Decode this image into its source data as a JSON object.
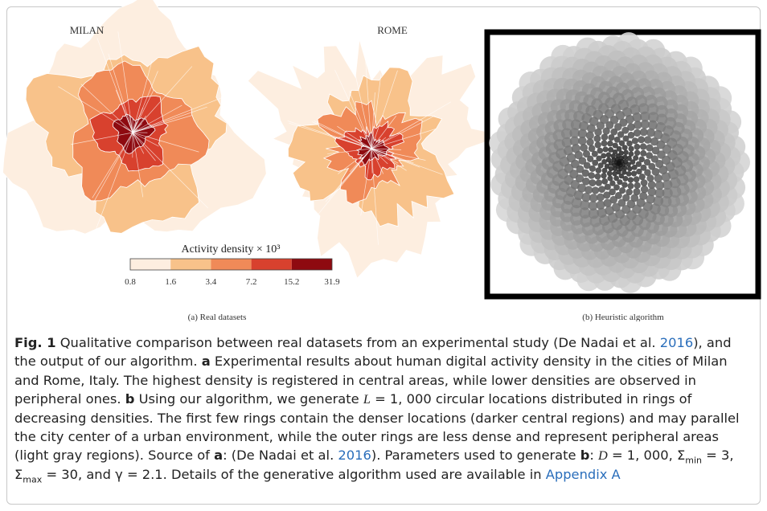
{
  "figure": {
    "panel_a": {
      "milan_label": "MILAN",
      "rome_label": "ROME",
      "colorbar_title": "Activity density × 10³",
      "colorbar_ticks": [
        "0.8",
        "1.6",
        "3.4",
        "7.2",
        "15.2",
        "31.9"
      ],
      "caption": "(a) Real datasets"
    },
    "panel_b": {
      "caption": "(b) Heuristic algorithm"
    }
  },
  "caption": {
    "segments": [
      "Fig. 1",
      "  Qualitative comparison between real datasets from an experimental study (De Nadai et al. ",
      "2016",
      "), and the output of our algorithm. ",
      "a",
      " Experimental results about human digital activity density in the cities of Milan and Rome, Italy. The highest density is registered in central areas, while lower densities are observed in peripheral ones. ",
      "b",
      " Using our algorithm, we generate ",
      "L",
      " = 1, 000 circular locations distributed in rings of decreasing densities. The first few rings contain the denser locations (darker central regions) and may parallel the city center of a urban environment, while the outer rings are less dense and represent peripheral areas (light gray regions). Source of ",
      "a",
      ": (De Nadai et al. ",
      "2016",
      "). Parameters used to generate ",
      "b",
      ": ",
      "D",
      " = 1, 000, Σ",
      "min",
      " = 3, Σ",
      "max",
      " = 30, and γ = 2.1. Details of the generative algorithm used are available in ",
      "Appendix A"
    ]
  }
}
